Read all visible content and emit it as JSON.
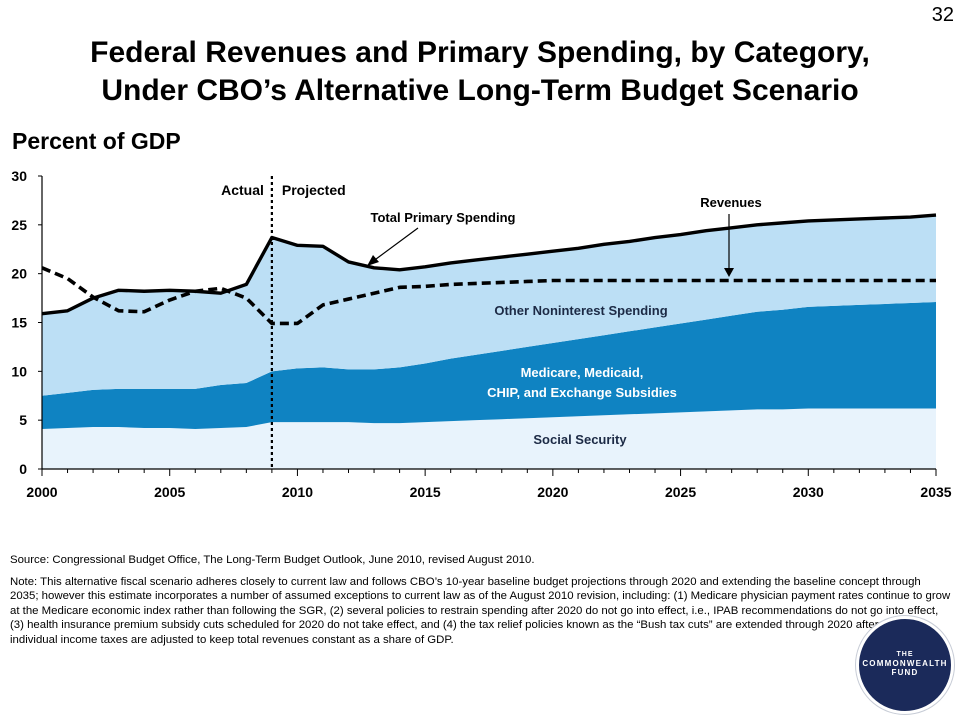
{
  "slide_number": "32",
  "title_line1": "Federal Revenues and Primary Spending, by Category,",
  "title_line2": "Under CBO’s Alternative Long-Term Budget Scenario",
  "source": "Source: Congressional Budget Office, The Long-Term Budget Outlook, June 2010, revised August 2010.",
  "note": "Note: This alternative fiscal scenario adheres closely to current law and follows CBO’s 10-year baseline budget projections through 2020 and extending the baseline concept through 2035; however this estimate incorporates a number of assumed exceptions to current law as of the August 2010 revision, including: (1) Medicare physician payment rates continue to grow at the Medicare economic index rather than following the SGR, (2) several policies to restrain spending after 2020 do not go into effect, i.e., IPAB recommendations do not go into effect, (3) health insurance premium subsidy cuts scheduled for 2020 do not take effect, and (4) the tax relief policies known as the “Bush tax cuts” are extended through 2020 after which individual income taxes are adjusted to keep total revenues constant as a share of GDP.",
  "logo": {
    "line1": "THE",
    "line2": "COMMONWEALTH",
    "line3": "FUND"
  },
  "chart_data": {
    "type": "area",
    "ylabel": "Percent of GDP",
    "xlim": [
      2000,
      2035
    ],
    "ylim": [
      0,
      30
    ],
    "xticks": [
      2000,
      2005,
      2010,
      2015,
      2020,
      2025,
      2030,
      2035
    ],
    "yticks": [
      0,
      5,
      10,
      15,
      20,
      25,
      30
    ],
    "divider_year": 2009,
    "divider_labels": {
      "left": "Actual",
      "right": "Projected"
    },
    "x": [
      2000,
      2001,
      2002,
      2003,
      2004,
      2005,
      2006,
      2007,
      2008,
      2009,
      2010,
      2011,
      2012,
      2013,
      2014,
      2015,
      2016,
      2017,
      2018,
      2019,
      2020,
      2021,
      2022,
      2023,
      2024,
      2025,
      2026,
      2027,
      2028,
      2029,
      2030,
      2031,
      2032,
      2033,
      2034,
      2035
    ],
    "series": [
      {
        "name": "Social Security",
        "color": "#e8f3fc",
        "values": [
          4.1,
          4.2,
          4.3,
          4.3,
          4.2,
          4.2,
          4.1,
          4.2,
          4.3,
          4.8,
          4.8,
          4.8,
          4.8,
          4.7,
          4.7,
          4.8,
          4.9,
          5.0,
          5.1,
          5.2,
          5.3,
          5.4,
          5.5,
          5.6,
          5.7,
          5.8,
          5.9,
          6.0,
          6.1,
          6.1,
          6.2,
          6.2,
          6.2,
          6.2,
          6.2,
          6.2
        ]
      },
      {
        "name": "Medicare, Medicaid, CHIP, and Exchange Subsidies",
        "color": "#0f83c2",
        "values": [
          3.4,
          3.6,
          3.8,
          3.9,
          4.0,
          4.0,
          4.1,
          4.4,
          4.5,
          5.2,
          5.5,
          5.6,
          5.4,
          5.5,
          5.7,
          6.0,
          6.4,
          6.7,
          7.0,
          7.3,
          7.6,
          7.9,
          8.2,
          8.5,
          8.8,
          9.1,
          9.4,
          9.7,
          10.0,
          10.2,
          10.4,
          10.5,
          10.6,
          10.7,
          10.8,
          10.9
        ]
      },
      {
        "name": "Other Noninterest Spending",
        "color": "#bcdff5",
        "values": [
          8.4,
          8.4,
          9.4,
          10.1,
          10.0,
          10.1,
          10.0,
          9.4,
          10.1,
          13.7,
          12.6,
          12.4,
          11.0,
          10.4,
          10.0,
          9.9,
          9.8,
          9.7,
          9.6,
          9.5,
          9.4,
          9.3,
          9.3,
          9.2,
          9.2,
          9.1,
          9.1,
          9.0,
          8.9,
          8.9,
          8.8,
          8.8,
          8.8,
          8.8,
          8.8,
          8.9
        ]
      }
    ],
    "lines": [
      {
        "name": "Total Primary Spending",
        "style": "solid",
        "values": [
          15.9,
          16.2,
          17.5,
          18.3,
          18.2,
          18.3,
          18.2,
          18.0,
          18.9,
          23.7,
          22.9,
          22.8,
          21.2,
          20.6,
          20.4,
          20.7,
          21.1,
          21.4,
          21.7,
          22.0,
          22.3,
          22.6,
          23.0,
          23.3,
          23.7,
          24.0,
          24.4,
          24.7,
          25.0,
          25.2,
          25.4,
          25.5,
          25.6,
          25.7,
          25.8,
          26.0
        ]
      },
      {
        "name": "Revenues",
        "style": "dashed",
        "values": [
          20.6,
          19.5,
          17.6,
          16.2,
          16.1,
          17.3,
          18.2,
          18.5,
          17.5,
          14.9,
          14.9,
          16.8,
          17.4,
          18.0,
          18.6,
          18.7,
          18.9,
          19.0,
          19.1,
          19.2,
          19.3,
          19.3,
          19.3,
          19.3,
          19.3,
          19.3,
          19.3,
          19.3,
          19.3,
          19.3,
          19.3,
          19.3,
          19.3,
          19.3,
          19.3,
          19.3
        ]
      }
    ],
    "annotations": {
      "total_primary_spending": "Total Primary Spending",
      "revenues": "Revenues",
      "other_noninterest": "Other Noninterest Spending",
      "medicare_line1": "Medicare, Medicaid,",
      "medicare_line2": "CHIP, and Exchange Subsidies",
      "social_security": "Social Security"
    }
  }
}
